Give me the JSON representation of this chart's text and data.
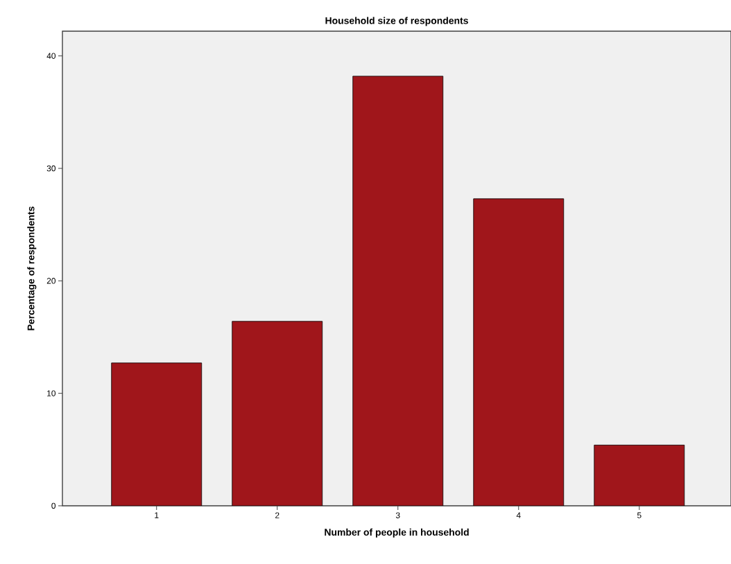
{
  "chart_data": {
    "type": "bar",
    "title": "Household size of respondents",
    "xlabel": "Number of people in household",
    "ylabel": "Percentage of respondents",
    "categories": [
      "1",
      "2",
      "3",
      "4",
      "5"
    ],
    "values": [
      12.7,
      16.4,
      38.2,
      27.3,
      5.4
    ],
    "color": "#a0161b",
    "ylim": [
      0,
      42.2
    ],
    "yticks": [
      0,
      10,
      20,
      30,
      40
    ],
    "grid": false
  }
}
